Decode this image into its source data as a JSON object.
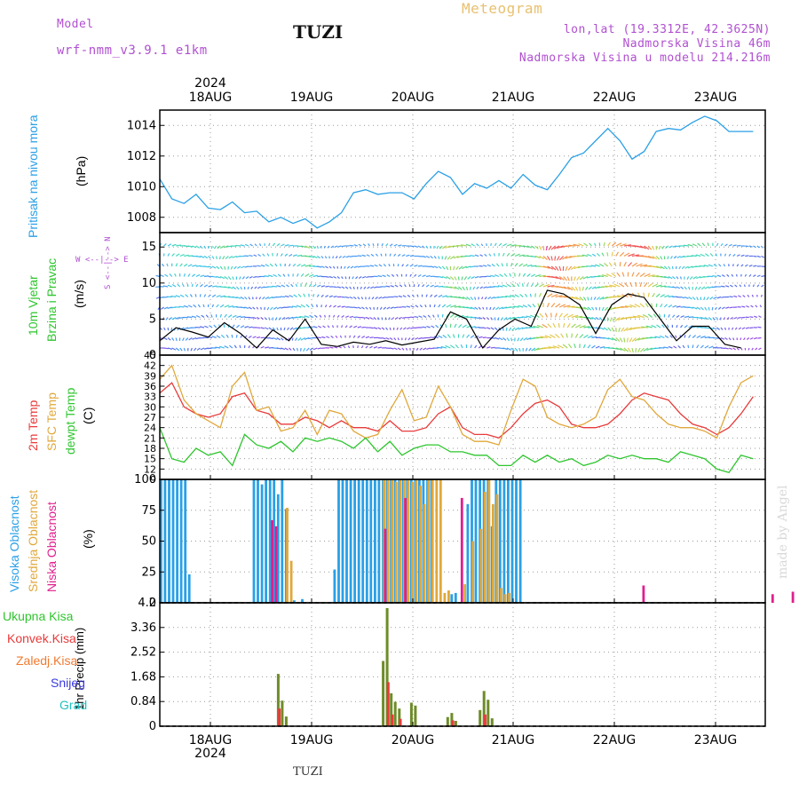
{
  "header": {
    "model_label": "Model",
    "model_name": "wrf-nmm_v3.9.1 e1km",
    "station": "TUZI",
    "title": "Meteogram",
    "lonlat": "lon,lat (19.3312E, 42.3625N)",
    "elevation": "Nadmorska Visina 46m",
    "model_elevation": "Nadmorska Visina u modelu 214.216m"
  },
  "footer": {
    "station": "TUZI",
    "credit": "made by Angel"
  },
  "colors": {
    "pressure": "#2aa0e6",
    "wind_speed": "#000000",
    "temp2m": "#e83a3a",
    "sfc_temp": "#e0a83c",
    "dewpoint": "#2ec52e",
    "high_cloud": "#2aa0e6",
    "mid_cloud": "#e0a83c",
    "low_cloud": "#e0208c",
    "total_precip": "#2ec52e",
    "conv_precip": "#e83a3a",
    "frz_precip": "#f07a30",
    "snow": "#3a3ae0",
    "grad": "#20c0c0",
    "model_text": "#b050d0",
    "title_text": "#e8c070"
  },
  "time_axis": {
    "year": "2024",
    "days": [
      "18AUG",
      "19AUG",
      "20AUG",
      "21AUG",
      "22AUG",
      "23AUG"
    ]
  },
  "panels": {
    "pressure": {
      "title": "Pritisak na nivou mora",
      "unit": "(hPa)"
    },
    "wind": {
      "title1": "10m Vjetar",
      "title2": "Brzina i Pravac",
      "unit": "(m/s)",
      "compass": "W <--|--> E",
      "compass_v": "S <--|--> N"
    },
    "temp": {
      "t2m": "2m Temp",
      "sfc": "SFC Temp",
      "dew": "dewpt Temp",
      "unit": "(C)"
    },
    "cloud": {
      "high": "Visoka Oblacnost",
      "mid": "Srednja Oblacnost",
      "low": "Niska Oblacnost",
      "unit": "(%)"
    },
    "precip": {
      "unit": "1hr Precip (mm)",
      "legend": [
        "Ukupna Kisa",
        "Konvek.Kisa",
        "Zaledj.Kisa",
        "Snijeg",
        "Grad"
      ]
    }
  },
  "chart_data": [
    {
      "type": "line",
      "title": "",
      "ylabel": "(hPa)",
      "ylim": [
        1007.0,
        1015.0
      ],
      "yticks": [
        "1008",
        "1010",
        "1012",
        "1014"
      ],
      "x_hours": [
        0,
        3,
        6,
        9,
        12,
        15,
        18,
        21,
        24,
        27,
        30,
        33,
        36,
        39,
        42,
        45,
        48,
        51,
        54,
        57,
        60,
        63,
        66,
        69,
        72,
        75,
        78,
        81,
        84,
        87,
        90,
        93,
        96,
        99,
        102,
        105,
        108,
        111,
        114,
        117,
        120,
        123,
        126,
        129,
        132,
        135,
        138,
        141,
        144,
        147
      ],
      "series": [
        {
          "name": "",
          "values": [
            1010.5,
            1009.2,
            1008.9,
            1009.5,
            1008.6,
            1008.5,
            1009.0,
            1008.3,
            1008.4,
            1007.7,
            1008.0,
            1007.6,
            1007.9,
            1007.3,
            1007.7,
            1008.3,
            1009.6,
            1009.8,
            1009.5,
            1009.6,
            1009.6,
            1009.2,
            1010.2,
            1011.0,
            1010.6,
            1009.5,
            1010.2,
            1009.9,
            1010.4,
            1009.9,
            1010.8,
            1010.1,
            1009.8,
            1010.8,
            1011.9,
            1012.2,
            1013.0,
            1013.8,
            1013.0,
            1011.8,
            1012.3,
            1013.6,
            1013.8,
            1013.7,
            1014.2,
            1014.6,
            1014.3,
            1013.6,
            1013.6,
            1013.6
          ]
        }
      ]
    },
    {
      "type": "line",
      "title": "",
      "ylabel": "(m/s)",
      "ylim": [
        0,
        17
      ],
      "yticks": [
        "0",
        "5",
        "10",
        "15"
      ],
      "x_hours": [
        0,
        4,
        8,
        12,
        16,
        20,
        24,
        28,
        32,
        36,
        40,
        44,
        48,
        52,
        56,
        60,
        64,
        68,
        72,
        76,
        80,
        84,
        88,
        92,
        96,
        100,
        104,
        108,
        112,
        116,
        120,
        124,
        128,
        132,
        136,
        140,
        144
      ],
      "series": [
        {
          "name": "",
          "values": [
            2.0,
            3.8,
            3.2,
            2.5,
            4.5,
            3.0,
            1.0,
            3.5,
            2.0,
            5.0,
            1.5,
            1.2,
            1.8,
            1.5,
            2.0,
            1.4,
            1.8,
            2.2,
            6.0,
            5.0,
            1.0,
            3.5,
            5.0,
            4.0,
            9.0,
            8.5,
            7.0,
            3.0,
            7.0,
            8.5,
            8.0,
            5.0,
            2.0,
            4.0,
            4.0,
            1.5,
            1.0
          ]
        }
      ]
    },
    {
      "type": "line",
      "title": "",
      "ylabel": "(C)",
      "ylim": [
        9,
        45
      ],
      "yticks": [
        "9",
        "12",
        "15",
        "18",
        "21",
        "24",
        "27",
        "30",
        "33",
        "36",
        "39",
        "42",
        "45"
      ],
      "x_hours": [
        0,
        3,
        6,
        9,
        12,
        15,
        18,
        21,
        24,
        27,
        30,
        33,
        36,
        39,
        42,
        45,
        48,
        51,
        54,
        57,
        60,
        63,
        66,
        69,
        72,
        75,
        78,
        81,
        84,
        87,
        90,
        93,
        96,
        99,
        102,
        105,
        108,
        111,
        114,
        117,
        120,
        123,
        126,
        129,
        132,
        135,
        138,
        141,
        144,
        147
      ],
      "series": [
        {
          "name": "2m Temp",
          "values": [
            34,
            37,
            30,
            28,
            27,
            28,
            33,
            34,
            29,
            28,
            25,
            25,
            27,
            26,
            24,
            26,
            24,
            24,
            23,
            26,
            23,
            23,
            24,
            28,
            30,
            24,
            22,
            22,
            21,
            24,
            28,
            31,
            32,
            30,
            25,
            24,
            24,
            25,
            28,
            32,
            34,
            33,
            32,
            28,
            25,
            24,
            22,
            24,
            28,
            33
          ]
        },
        {
          "name": "SFC Temp",
          "values": [
            38,
            42,
            32,
            28,
            26,
            24,
            36,
            40,
            29,
            30,
            23,
            24,
            29,
            22,
            29,
            28,
            23,
            21,
            22,
            29,
            35,
            26,
            27,
            36,
            30,
            22,
            20,
            20,
            19,
            29,
            38,
            36,
            27,
            25,
            24,
            25,
            27,
            35,
            38,
            33,
            32,
            28,
            25,
            24,
            24,
            23,
            21,
            30,
            37,
            39
          ]
        },
        {
          "name": "dewpt Temp",
          "values": [
            24,
            15,
            14,
            18,
            16,
            17,
            13,
            22,
            19,
            18,
            20,
            17,
            21,
            20,
            21,
            20,
            18,
            21,
            17,
            20,
            16,
            18,
            19,
            19,
            17,
            17,
            16,
            16,
            13,
            13,
            16,
            14,
            16,
            14,
            15,
            13,
            14,
            16,
            15,
            16,
            15,
            15,
            14,
            17,
            16,
            15,
            12,
            11,
            16,
            15
          ]
        }
      ]
    },
    {
      "type": "bar",
      "title": "",
      "ylabel": "(%)",
      "ylim": [
        0,
        100
      ],
      "yticks": [
        "0",
        "25",
        "50",
        "75",
        "100"
      ],
      "series": [
        {
          "name": "Visoka Oblacnost",
          "bars": [
            [
              0,
              100
            ],
            [
              1,
              100
            ],
            [
              2,
              100
            ],
            [
              3,
              100
            ],
            [
              4,
              100
            ],
            [
              5,
              100
            ],
            [
              6,
              100
            ],
            [
              7,
              23
            ],
            [
              23,
              100
            ],
            [
              24,
              100
            ],
            [
              25,
              96
            ],
            [
              26,
              100
            ],
            [
              27,
              100
            ],
            [
              28,
              100
            ],
            [
              29,
              88
            ],
            [
              30,
              100
            ],
            [
              31,
              76
            ],
            [
              33,
              2
            ],
            [
              35,
              3
            ],
            [
              43,
              27
            ],
            [
              44,
              100
            ],
            [
              45,
              100
            ],
            [
              46,
              100
            ],
            [
              47,
              100
            ],
            [
              48,
              100
            ],
            [
              49,
              100
            ],
            [
              50,
              100
            ],
            [
              51,
              100
            ],
            [
              52,
              100
            ],
            [
              53,
              100
            ],
            [
              54,
              100
            ],
            [
              55,
              100
            ],
            [
              56,
              100
            ],
            [
              57,
              100
            ],
            [
              58,
              100
            ],
            [
              59,
              100
            ],
            [
              60,
              100
            ],
            [
              61,
              100
            ],
            [
              62,
              100
            ],
            [
              63,
              100
            ],
            [
              64,
              100
            ],
            [
              65,
              100
            ],
            [
              66,
              100
            ],
            [
              67,
              100
            ],
            [
              72,
              7
            ],
            [
              73,
              8
            ],
            [
              76,
              80
            ],
            [
              77,
              100
            ],
            [
              78,
              100
            ],
            [
              79,
              100
            ],
            [
              80,
              100
            ],
            [
              81,
              100
            ],
            [
              82,
              62
            ],
            [
              83,
              100
            ],
            [
              84,
              100
            ],
            [
              85,
              100
            ],
            [
              86,
              100
            ],
            [
              87,
              100
            ],
            [
              88,
              100
            ],
            [
              89,
              100
            ]
          ]
        },
        {
          "name": "Srednja Oblacnost",
          "bars": [
            [
              31,
              77
            ],
            [
              32,
              34
            ],
            [
              55,
              100
            ],
            [
              56,
              100
            ],
            [
              57,
              100
            ],
            [
              58,
              98
            ],
            [
              59,
              100
            ],
            [
              60,
              100
            ],
            [
              61,
              100
            ],
            [
              62,
              98
            ],
            [
              63,
              100
            ],
            [
              64,
              95
            ],
            [
              65,
              80
            ],
            [
              66,
              100
            ],
            [
              67,
              100
            ],
            [
              68,
              100
            ],
            [
              69,
              100
            ],
            [
              70,
              8
            ],
            [
              71,
              10
            ],
            [
              75,
              15
            ],
            [
              77,
              50
            ],
            [
              79,
              60
            ],
            [
              80,
              90
            ],
            [
              81,
              100
            ],
            [
              82,
              80
            ],
            [
              83,
              88
            ],
            [
              84,
              12
            ],
            [
              85,
              7
            ],
            [
              86,
              8
            ]
          ]
        },
        {
          "name": "Niska Oblacnost",
          "bars": [
            [
              27,
              67
            ],
            [
              28,
              62
            ],
            [
              55,
              60
            ],
            [
              60,
              85
            ],
            [
              74,
              85
            ],
            [
              119,
              14
            ],
            [
              151,
              7
            ],
            [
              156,
              9
            ]
          ]
        }
      ]
    },
    {
      "type": "bar",
      "title": "",
      "ylabel": "1hr Precip (mm)",
      "ylim": [
        0,
        4.2
      ],
      "yticks": [
        "0",
        "0.84",
        "1.68",
        "2.52",
        "3.36",
        "4.2"
      ],
      "series": [
        {
          "name": "Ukupna Kisa",
          "bars": [
            [
              29,
              1.78
            ],
            [
              30,
              0.87
            ],
            [
              31,
              0.33
            ],
            [
              55,
              2.22
            ],
            [
              56,
              4.02
            ],
            [
              57,
              1.12
            ],
            [
              58,
              0.83
            ],
            [
              59,
              0.6
            ],
            [
              62,
              0.8
            ],
            [
              63,
              0.7
            ],
            [
              71,
              0.31
            ],
            [
              72,
              0.45
            ],
            [
              73,
              0.18
            ],
            [
              79,
              0.55
            ],
            [
              80,
              1.2
            ],
            [
              81,
              0.9
            ],
            [
              82,
              0.27
            ]
          ]
        },
        {
          "name": "Konvek.Kisa",
          "bars": [
            [
              29,
              0.6
            ],
            [
              56,
              1.5
            ],
            [
              57,
              0.4
            ],
            [
              59,
              0.25
            ],
            [
              72,
              0.2
            ],
            [
              80,
              0.4
            ]
          ]
        }
      ]
    }
  ]
}
